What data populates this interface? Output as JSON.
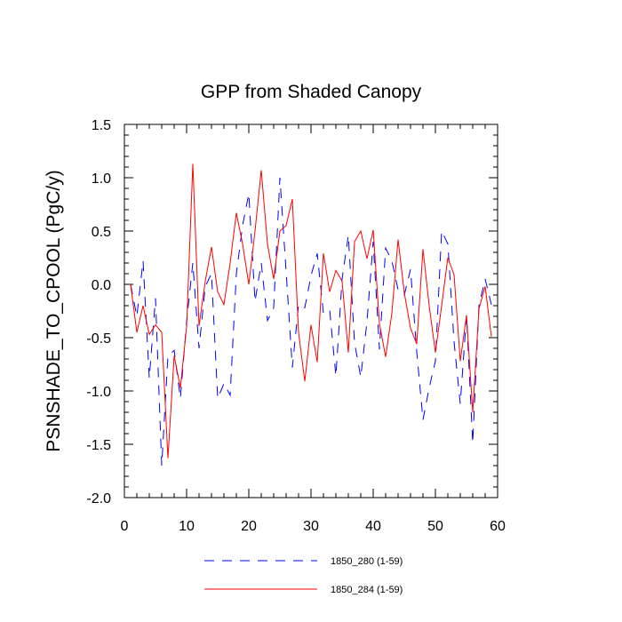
{
  "chart_data": {
    "type": "line",
    "title": "GPP from Shaded Canopy",
    "xlabel": "",
    "ylabel": "PSNSHADE_TO_CPOOL  (PgC/y)",
    "xlim": [
      0,
      60
    ],
    "ylim": [
      -2.0,
      1.5
    ],
    "x_ticks": [
      0,
      10,
      20,
      30,
      40,
      50,
      60
    ],
    "x_tick_labels": [
      "0",
      "10",
      "20",
      "30",
      "40",
      "50",
      "60"
    ],
    "y_ticks": [
      -2.0,
      -1.5,
      -1.0,
      -0.5,
      0.0,
      0.5,
      1.0,
      1.5
    ],
    "y_tick_labels": [
      "-2.0",
      "-1.5",
      "-1.0",
      "-0.5",
      "0.0",
      "0.5",
      "1.0",
      "1.5"
    ],
    "x": [
      1,
      2,
      3,
      4,
      5,
      6,
      7,
      8,
      9,
      10,
      11,
      12,
      13,
      14,
      15,
      16,
      17,
      18,
      19,
      20,
      21,
      22,
      23,
      24,
      25,
      26,
      27,
      28,
      29,
      30,
      31,
      32,
      33,
      34,
      35,
      36,
      37,
      38,
      39,
      40,
      41,
      42,
      43,
      44,
      45,
      46,
      47,
      48,
      49,
      50,
      51,
      52,
      53,
      54,
      55,
      56,
      57,
      58,
      59
    ],
    "series": [
      {
        "name": "1850_280 (1-59)",
        "color": "#0000ff",
        "dash": "dashed",
        "values": [
          0.0,
          -0.3,
          0.22,
          -0.88,
          -0.13,
          -1.7,
          -0.67,
          -0.62,
          -1.07,
          -0.35,
          0.2,
          -0.6,
          -0.02,
          0.1,
          -1.07,
          -0.93,
          -1.04,
          0.1,
          0.55,
          0.85,
          -0.16,
          0.2,
          -0.34,
          -0.22,
          1.0,
          0.12,
          -0.78,
          -0.19,
          -0.22,
          0.08,
          0.29,
          -0.27,
          -0.24,
          -0.86,
          0.05,
          0.46,
          -0.55,
          -0.87,
          -0.35,
          0.4,
          -0.61,
          0.34,
          0.22,
          -0.05,
          -0.1,
          0.14,
          -0.63,
          -1.27,
          -0.97,
          -0.72,
          0.5,
          0.38,
          -0.54,
          -1.12,
          -0.29,
          -1.49,
          -0.2,
          0.05,
          -0.19
        ]
      },
      {
        "name": "1850_284 (1-59)",
        "color": "#ff0000",
        "dash": "solid",
        "values": [
          0.0,
          -0.45,
          -0.2,
          -0.47,
          -0.38,
          -0.45,
          -1.63,
          -0.67,
          -0.97,
          -0.4,
          1.13,
          -0.39,
          0.03,
          0.35,
          -0.07,
          -0.19,
          0.2,
          0.67,
          0.38,
          0.0,
          0.5,
          1.07,
          0.38,
          0.05,
          0.5,
          0.55,
          0.8,
          -0.45,
          -0.91,
          -0.38,
          -0.73,
          0.29,
          -0.07,
          0.13,
          0.03,
          -0.64,
          0.4,
          0.5,
          0.24,
          0.51,
          -0.37,
          -0.68,
          -0.27,
          0.42,
          -0.08,
          -0.41,
          -0.56,
          0.33,
          -0.2,
          -0.64,
          -0.2,
          0.25,
          0.09,
          -0.72,
          -0.29,
          -1.2,
          -0.23,
          -0.02,
          -0.49
        ]
      }
    ],
    "legend": {
      "placement": "bottom-center",
      "entries": [
        "1850_280 (1-59)",
        "1850_284 (1-59)"
      ]
    },
    "grid": false
  }
}
